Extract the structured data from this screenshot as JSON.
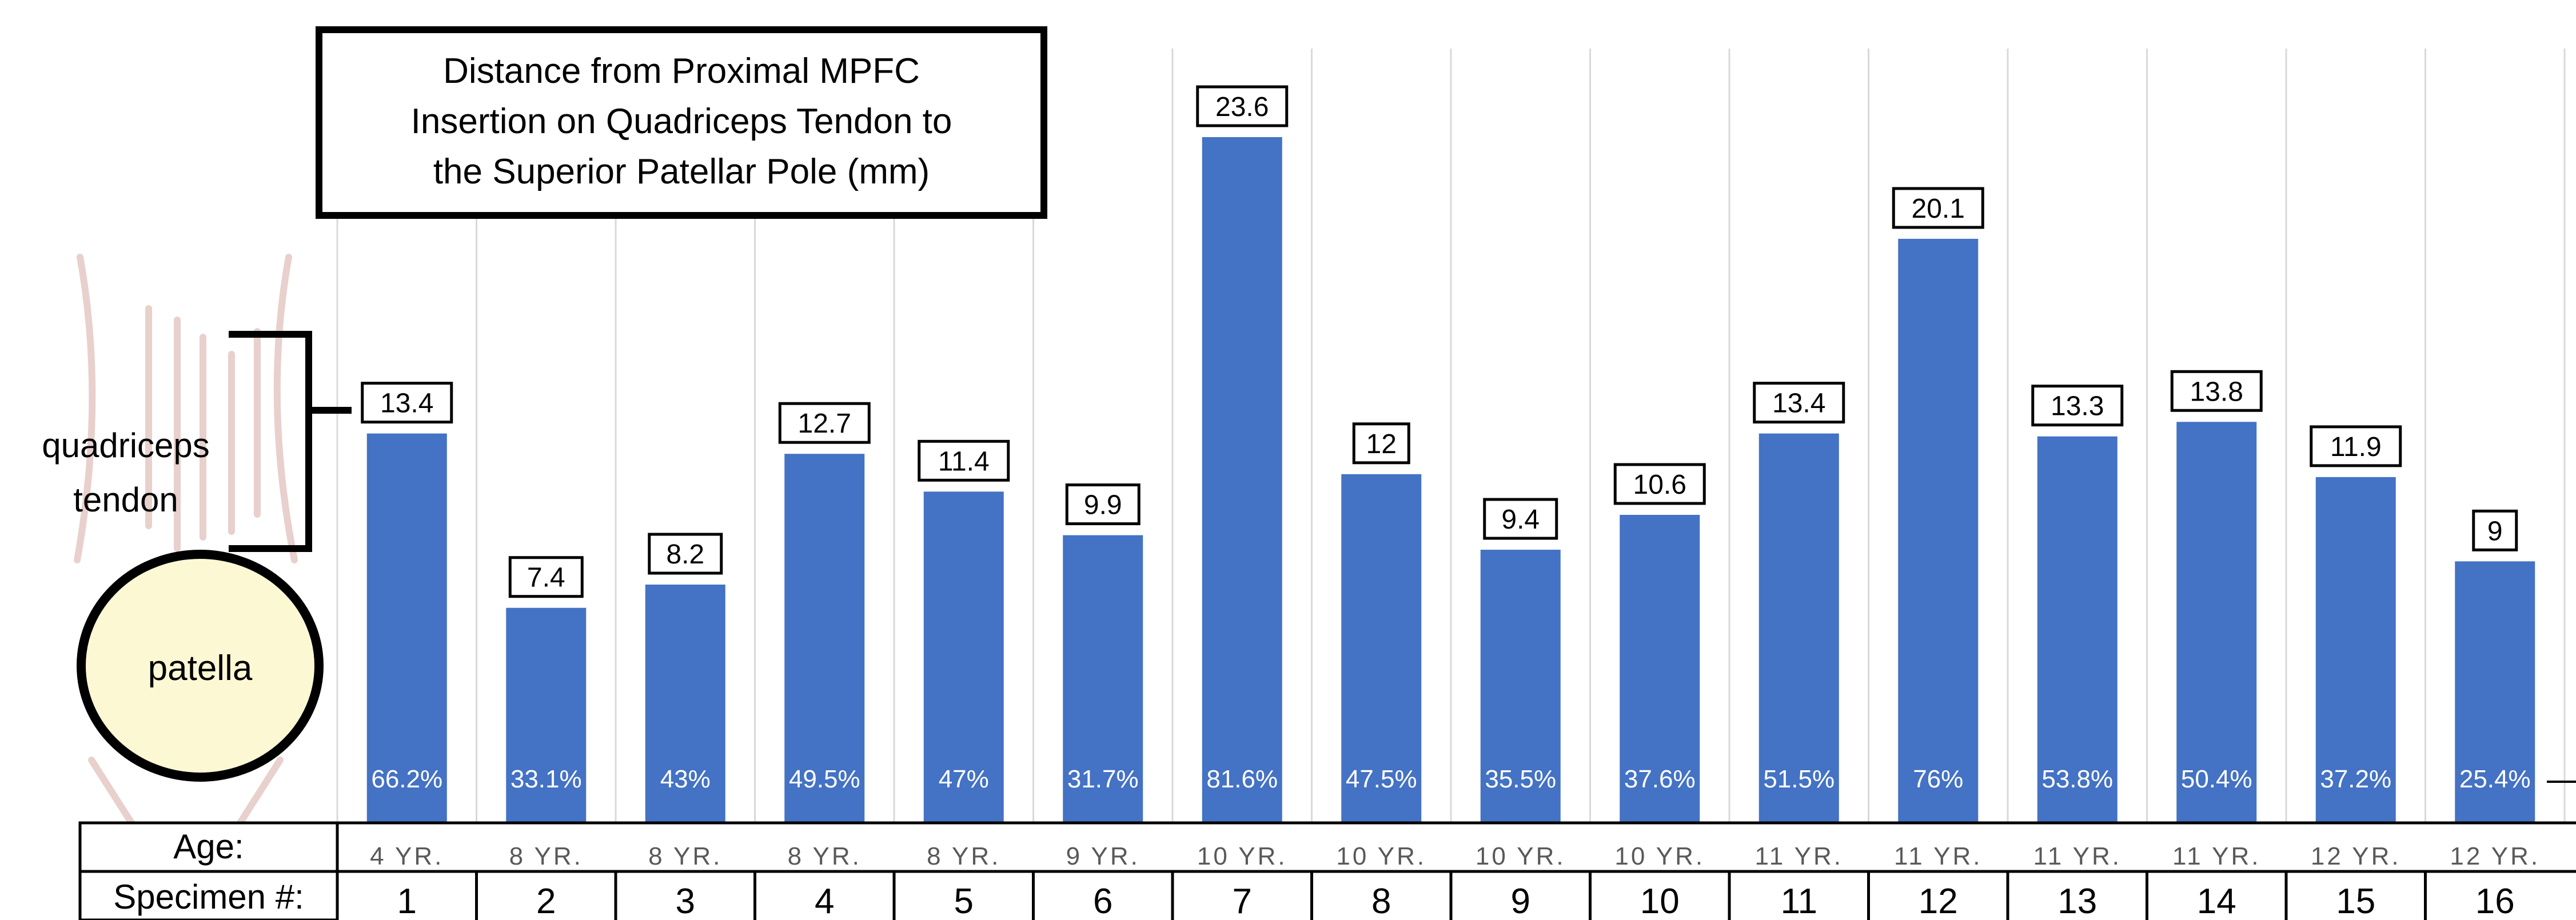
{
  "chart_data": {
    "type": "bar",
    "title": [
      "Distance from Proximal MPFC",
      "Insertion on Quadriceps Tendon to",
      "the Superior Patellar Pole (mm)"
    ],
    "categories": [
      "1",
      "2",
      "3",
      "4",
      "5",
      "6",
      "7",
      "8",
      "9",
      "10",
      "11",
      "12",
      "13",
      "14",
      "15",
      "16"
    ],
    "values": [
      13.4,
      7.4,
      8.2,
      12.7,
      11.4,
      9.9,
      23.6,
      12,
      9.4,
      10.6,
      13.4,
      20.1,
      13.3,
      13.8,
      11.9,
      9
    ],
    "value_labels": [
      "13.4",
      "7.4",
      "8.2",
      "12.7",
      "11.4",
      "9.9",
      "23.6",
      "12",
      "9.4",
      "10.6",
      "13.4",
      "20.1",
      "13.3",
      "13.8",
      "11.9",
      "9"
    ],
    "percent_labels": [
      "66.2%",
      "33.1%",
      "43%",
      "49.5%",
      "47%",
      "31.7%",
      "81.6%",
      "47.5%",
      "35.5%",
      "37.6%",
      "51.5%",
      "76%",
      "53.8%",
      "50.4%",
      "37.2%",
      "25.4%"
    ],
    "ages": [
      "4 YR.",
      "8 YR.",
      "8 YR.",
      "8 YR.",
      "8 YR.",
      "9 YR.",
      "10 YR.",
      "10 YR.",
      "10 YR.",
      "10 YR.",
      "11 YR.",
      "11 YR.",
      "11 YR.",
      "11 YR.",
      "12 YR.",
      "12 YR."
    ],
    "ylim": [
      0,
      27
    ],
    "grid": "vertical",
    "bar_color": "#4472C4"
  },
  "table": {
    "age_label": "Age:",
    "specimen_label": "Specimen #:"
  },
  "diagram": {
    "tendon_label": [
      "quadriceps",
      "tendon"
    ],
    "patella_label": "patella"
  }
}
